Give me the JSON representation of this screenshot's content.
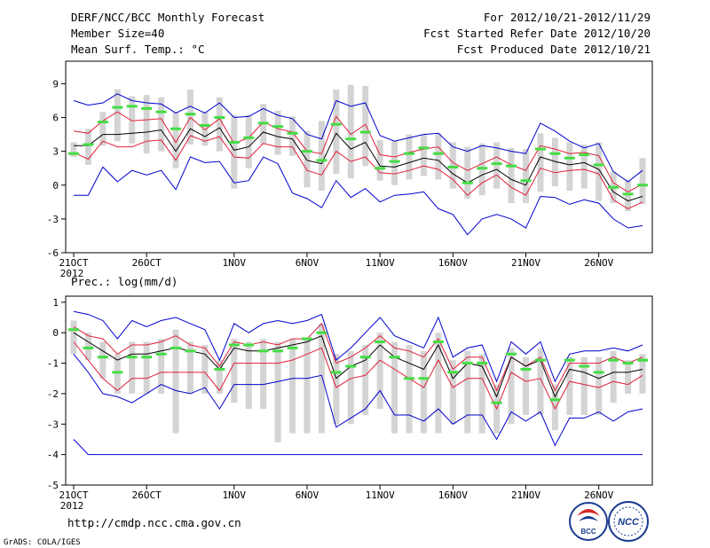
{
  "header": {
    "title": "DERF/NCC/BCC Monthly Forecast",
    "member_size": "Member Size=40",
    "period": "For 2012/10/21-2012/11/29",
    "start_date": "Fcst Started Refer Date 2012/10/20",
    "produced_date": "Fcst Produced Date 2012/10/21"
  },
  "footer": {
    "url": "http://cmdp.ncc.cma.gov.cn",
    "credit": "GrADS: COLA/IGES",
    "logo_bcc": "BCC",
    "logo_ncc": "NCC"
  },
  "colors": {
    "envelope": "#0000d0",
    "spread": "#e0203a",
    "mean": "#000000",
    "median": "#44dd44",
    "box": "#d4d4d4"
  },
  "chart_data": [
    {
      "type": "line",
      "title": "Mean Surf. Temp.: °C",
      "xlabel": "",
      "ylabel": "",
      "x_start": "21OCT 2012",
      "days": 39,
      "x_ticks": [
        {
          "day": 0,
          "label": "21OCT"
        },
        {
          "day": 5,
          "label": "26OCT"
        },
        {
          "day": 11,
          "label": "1NOV"
        },
        {
          "day": 16,
          "label": "6NOV"
        },
        {
          "day": 21,
          "label": "11NOV"
        },
        {
          "day": 26,
          "label": "16NOV"
        },
        {
          "day": 31,
          "label": "21NOV"
        },
        {
          "day": 36,
          "label": "26NOV"
        }
      ],
      "year_label": "2012",
      "ylim": [
        -6,
        11
      ],
      "y_ticks": [
        -6,
        -3,
        0,
        3,
        6,
        9
      ],
      "series": [
        {
          "name": "max",
          "values": [
            7.5,
            7.1,
            7.3,
            8.1,
            7.5,
            7.3,
            7.2,
            6.4,
            7.0,
            6.4,
            7.3,
            6.0,
            6.1,
            6.8,
            6.2,
            5.9,
            4.5,
            4.1,
            7.5,
            7.0,
            7.3,
            4.4,
            3.9,
            4.2,
            4.5,
            4.6,
            3.4,
            3.0,
            3.5,
            3.3,
            3.0,
            2.8,
            5.5,
            4.8,
            3.9,
            3.3,
            3.7,
            1.2,
            0.3,
            1.3
          ]
        },
        {
          "name": "upper",
          "values": [
            4.8,
            4.6,
            5.7,
            6.5,
            5.7,
            5.8,
            5.9,
            3.8,
            6.0,
            4.9,
            5.9,
            3.7,
            4.2,
            5.6,
            5.0,
            4.7,
            3.0,
            2.8,
            6.1,
            4.5,
            5.4,
            2.7,
            2.5,
            2.9,
            3.2,
            3.4,
            2.0,
            1.3,
            1.9,
            2.5,
            1.8,
            1.3,
            3.5,
            3.2,
            2.8,
            2.9,
            2.6,
            0.2,
            -0.6,
            0.1
          ]
        },
        {
          "name": "mean",
          "values": [
            3.5,
            3.5,
            4.5,
            4.5,
            4.6,
            4.7,
            4.9,
            3.0,
            5.0,
            4.3,
            5.1,
            3.1,
            3.4,
            4.7,
            4.3,
            4.1,
            2.2,
            1.9,
            4.6,
            3.2,
            3.8,
            1.7,
            1.6,
            2.0,
            2.4,
            2.2,
            1.0,
            0.2,
            0.9,
            1.4,
            0.5,
            0.0,
            2.5,
            2.1,
            1.8,
            2.0,
            1.4,
            -0.6,
            -1.4,
            -1.0
          ]
        },
        {
          "name": "lower",
          "values": [
            2.9,
            2.3,
            3.9,
            3.4,
            3.4,
            3.9,
            4.0,
            2.2,
            4.4,
            3.9,
            4.3,
            2.5,
            2.4,
            3.7,
            3.4,
            3.4,
            1.3,
            0.9,
            3.0,
            2.1,
            2.5,
            1.1,
            1.0,
            1.3,
            1.7,
            1.4,
            0.5,
            -0.9,
            0.2,
            0.9,
            -0.2,
            -0.9,
            1.5,
            1.1,
            1.3,
            1.4,
            1.0,
            -1.3,
            -2.1,
            -1.5
          ]
        },
        {
          "name": "min",
          "values": [
            -0.9,
            -0.9,
            1.6,
            0.3,
            1.3,
            0.9,
            1.3,
            -0.4,
            2.5,
            2.0,
            2.1,
            0.2,
            0.4,
            2.5,
            1.9,
            -0.7,
            -1.2,
            -2.0,
            0.4,
            -1.1,
            -0.3,
            -1.5,
            -0.9,
            -0.8,
            -0.6,
            -2.1,
            -2.6,
            -4.4,
            -3.0,
            -2.6,
            -3.0,
            -3.8,
            -1.0,
            -1.1,
            -1.7,
            -1.3,
            -1.6,
            -3.0,
            -3.8,
            -3.6
          ]
        },
        {
          "name": "median",
          "values": [
            2.8,
            3.6,
            5.6,
            6.9,
            7.0,
            6.8,
            6.5,
            5.0,
            6.3,
            5.3,
            6.0,
            3.8,
            4.2,
            5.5,
            5.2,
            4.6,
            3.0,
            2.2,
            5.4,
            4.1,
            4.7,
            1.5,
            2.1,
            2.8,
            3.3,
            2.8,
            1.6,
            0.2,
            1.5,
            1.9,
            1.7,
            0.4,
            3.2,
            2.8,
            2.4,
            2.7,
            1.8,
            -0.2,
            -0.8,
            0.0
          ]
        }
      ],
      "boxes": {
        "high": [
          3.8,
          5.0,
          6.5,
          8.5,
          7.9,
          8.0,
          7.8,
          6.5,
          8.5,
          6.5,
          7.8,
          6.2,
          6.2,
          7.2,
          6.6,
          6.1,
          4.8,
          5.7,
          8.5,
          8.9,
          8.8,
          4.0,
          3.9,
          4.5,
          4.5,
          4.6,
          3.8,
          3.4,
          3.7,
          3.8,
          3.3,
          3.2,
          4.6,
          4.2,
          3.8,
          3.6,
          3.8,
          1.2,
          0.5,
          2.4
        ],
        "low": [
          2.5,
          1.8,
          3.5,
          3.9,
          3.7,
          2.8,
          3.0,
          1.5,
          3.6,
          3.5,
          3.0,
          -0.3,
          1.5,
          3.6,
          2.7,
          2.6,
          -0.2,
          -0.5,
          1.0,
          0.6,
          1.7,
          0.4,
          0.0,
          0.5,
          0.8,
          0.5,
          -0.3,
          -1.2,
          -0.9,
          -0.3,
          -1.6,
          -1.6,
          -0.6,
          -0.1,
          -0.5,
          -0.3,
          -1.4,
          -1.6,
          -2.3,
          -1.7
        ]
      }
    },
    {
      "type": "line",
      "title": "Prec.: log(mm/d)",
      "xlabel": "",
      "ylabel": "",
      "x_start": "21OCT 2012",
      "days": 39,
      "x_ticks": [
        {
          "day": 0,
          "label": "21OCT"
        },
        {
          "day": 5,
          "label": "26OCT"
        },
        {
          "day": 11,
          "label": "1NOV"
        },
        {
          "day": 16,
          "label": "6NOV"
        },
        {
          "day": 21,
          "label": "11NOV"
        },
        {
          "day": 26,
          "label": "16NOV"
        },
        {
          "day": 31,
          "label": "21NOV"
        },
        {
          "day": 36,
          "label": "26NOV"
        }
      ],
      "year_label": "2012",
      "ylim": [
        -5,
        1.2
      ],
      "y_ticks": [
        -5,
        -4,
        -3,
        -2,
        -1,
        0,
        1
      ],
      "series": [
        {
          "name": "max",
          "values": [
            0.7,
            0.6,
            0.4,
            -0.2,
            0.4,
            0.2,
            0.4,
            0.5,
            0.3,
            0.1,
            -0.9,
            0.3,
            0.0,
            0.3,
            0.4,
            0.3,
            0.4,
            0.6,
            -0.9,
            -0.5,
            0.0,
            0.5,
            -0.1,
            -0.3,
            -0.5,
            0.5,
            -0.8,
            -0.5,
            -0.4,
            -1.6,
            -0.3,
            -0.7,
            -0.3,
            -1.6,
            -0.7,
            -0.6,
            -0.6,
            -0.5,
            -0.6,
            -0.4
          ]
        },
        {
          "name": "upper",
          "values": [
            0.2,
            -0.1,
            -0.2,
            -0.7,
            -0.4,
            -0.4,
            -0.3,
            -0.1,
            -0.4,
            -0.5,
            -1.1,
            -0.3,
            -0.4,
            -0.3,
            -0.4,
            -0.2,
            -0.2,
            0.3,
            -1.0,
            -0.8,
            -0.5,
            -0.1,
            -0.5,
            -0.6,
            -0.8,
            -0.2,
            -1.2,
            -0.8,
            -0.8,
            -1.9,
            -0.8,
            -1.1,
            -0.8,
            -1.9,
            -1.0,
            -1.0,
            -1.0,
            -0.8,
            -1.0,
            -0.8
          ]
        },
        {
          "name": "mean",
          "values": [
            0.0,
            -0.3,
            -0.6,
            -0.9,
            -0.7,
            -0.7,
            -0.6,
            -0.5,
            -0.6,
            -0.7,
            -1.2,
            -0.5,
            -0.6,
            -0.6,
            -0.5,
            -0.4,
            -0.3,
            -0.1,
            -1.5,
            -1.1,
            -0.9,
            -0.4,
            -0.8,
            -1.0,
            -1.2,
            -0.4,
            -1.5,
            -1.0,
            -1.1,
            -2.1,
            -0.8,
            -1.1,
            -0.9,
            -2.1,
            -1.2,
            -1.3,
            -1.5,
            -1.3,
            -1.3,
            -1.2
          ]
        },
        {
          "name": "lower",
          "values": [
            -0.3,
            -0.9,
            -1.5,
            -1.9,
            -1.5,
            -1.5,
            -1.3,
            -1.3,
            -1.3,
            -1.3,
            -1.9,
            -1.0,
            -1.0,
            -1.0,
            -1.0,
            -0.9,
            -0.7,
            -0.5,
            -1.8,
            -1.5,
            -1.4,
            -0.9,
            -1.2,
            -1.5,
            -1.8,
            -0.9,
            -1.8,
            -1.5,
            -1.5,
            -2.5,
            -1.3,
            -1.6,
            -1.5,
            -2.5,
            -1.6,
            -1.7,
            -1.8,
            -1.6,
            -1.7,
            -1.4
          ]
        },
        {
          "name": "min",
          "values": [
            -0.7,
            -1.3,
            -2.0,
            -2.1,
            -2.3,
            -2.0,
            -1.7,
            -1.9,
            -2.0,
            -1.8,
            -2.5,
            -1.7,
            -1.7,
            -1.7,
            -1.6,
            -1.5,
            -1.5,
            -1.4,
            -3.1,
            -2.8,
            -2.5,
            -1.9,
            -2.7,
            -2.7,
            -2.9,
            -2.5,
            -3.0,
            -2.7,
            -2.7,
            -3.5,
            -2.6,
            -2.9,
            -2.6,
            -3.7,
            -2.8,
            -2.8,
            -2.6,
            -2.9,
            -2.6,
            -2.5
          ]
        },
        {
          "name": "min_floor",
          "values": [
            -3.5,
            -4.0,
            -4.0,
            -4.0,
            -4.0,
            -4.0,
            -4.0,
            -4.0,
            -4.0,
            -4.0,
            -4.0,
            -4.0,
            -4.0,
            -4.0,
            -4.0,
            -4.0,
            -4.0,
            -4.0,
            -4.0,
            -4.0,
            -4.0,
            -4.0,
            -4.0,
            -4.0,
            -4.0,
            -4.0,
            -4.0,
            -4.0,
            -4.0,
            -4.0,
            -4.0,
            -4.0,
            -4.0,
            -4.0,
            -4.0,
            -4.0,
            -4.0,
            -4.0,
            -4.0,
            -4.0
          ]
        },
        {
          "name": "median",
          "values": [
            0.1,
            -0.5,
            -0.8,
            -1.3,
            -0.8,
            -0.8,
            -0.7,
            -0.5,
            -0.6,
            -1.2,
            -0.4,
            -0.4,
            -0.6,
            -0.6,
            -0.5,
            -0.2,
            0.0,
            -1.3,
            -1.1,
            -0.8,
            -0.3,
            -0.8,
            -1.5,
            -1.5,
            -0.3,
            -1.3,
            -1.0,
            -1.0,
            -2.3,
            -0.7,
            -1.2,
            -0.9,
            -2.2,
            -0.9,
            -1.1,
            -1.3,
            -0.9,
            -1.0,
            -0.9,
            -0.9
          ]
        },
        {
          "name": "median_x",
          "values": [
            0,
            1,
            2,
            3,
            4,
            5,
            6,
            7,
            8,
            10,
            11,
            12,
            13,
            14,
            15,
            16,
            17,
            18,
            19,
            20,
            21,
            22,
            23,
            24,
            25,
            26,
            27,
            28,
            29,
            30,
            31,
            32,
            33,
            34,
            35,
            36,
            37,
            38,
            39,
            39
          ]
        }
      ],
      "boxes": {
        "high": [
          0.4,
          0.0,
          -0.3,
          -0.7,
          -0.3,
          -0.3,
          -0.2,
          0.1,
          -0.3,
          -0.4,
          -0.9,
          -0.2,
          -0.3,
          -0.2,
          -0.3,
          -0.2,
          -0.2,
          0.3,
          -0.7,
          -0.6,
          -0.4,
          0.0,
          -0.3,
          -0.4,
          -0.6,
          0.0,
          -0.9,
          -0.6,
          -0.7,
          -1.7,
          -0.5,
          -0.8,
          -0.5,
          -1.7,
          -0.8,
          -0.8,
          -0.8,
          -0.6,
          -0.9,
          -0.7
        ],
        "low": [
          -0.7,
          -0.9,
          -1.5,
          -2.0,
          -2.0,
          -2.0,
          -2.0,
          -3.3,
          -2.0,
          -2.0,
          -2.0,
          -2.3,
          -2.5,
          -2.5,
          -3.6,
          -3.3,
          -3.3,
          -3.3,
          -3.0,
          -3.0,
          -2.7,
          -2.5,
          -3.3,
          -3.3,
          -3.3,
          -3.3,
          -3.0,
          -3.3,
          -3.3,
          -3.3,
          -3.0,
          -2.7,
          -2.7,
          -3.2,
          -2.7,
          -2.7,
          -2.7,
          -2.3,
          -2.0,
          -2.0
        ]
      }
    }
  ]
}
